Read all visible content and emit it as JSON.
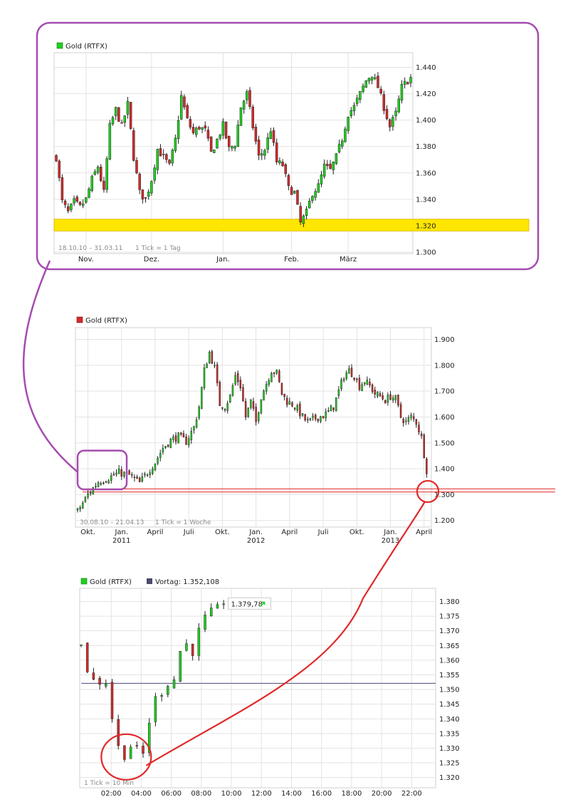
{
  "colors": {
    "up": "#1fd11f",
    "down": "#d42a2a",
    "grid": "#e3e3e3",
    "magnify_top": "#a54cb0",
    "magnify_bottom": "#e02828",
    "support_band": "#ffe600",
    "support_line": "#e02828",
    "vortag_line": "#4a4a7a",
    "legend_vortag": "#4a4a6a"
  },
  "chart_data": [
    {
      "id": "top",
      "type": "candlestick",
      "legend": "Gold (RTFX)",
      "legend_color": "#1fd11f",
      "range_label": "18.10.10 – 31.03.11",
      "tick_label": "1 Tick = 1 Tag",
      "ylim": [
        1300,
        1450
      ],
      "yticks": [
        1300,
        1320,
        1340,
        1360,
        1380,
        1400,
        1420,
        1440
      ],
      "ytick_labels": [
        "1.300",
        "1.320",
        "1.340",
        "1.360",
        "1.380",
        "1.400",
        "1.420",
        "1.440"
      ],
      "x_start": 0,
      "x_end": 119,
      "xticks": [
        {
          "x": 10,
          "label": "Nov."
        },
        {
          "x": 32,
          "label": "Dez."
        },
        {
          "x": 56,
          "label": "Jan."
        },
        {
          "x": 79,
          "label": "Feb."
        },
        {
          "x": 98,
          "label": "März"
        }
      ],
      "support_band": [
        1316,
        1325
      ],
      "anchors": [
        [
          0,
          1372
        ],
        [
          2,
          1338
        ],
        [
          4,
          1330
        ],
        [
          6,
          1338
        ],
        [
          8,
          1334
        ],
        [
          10,
          1340
        ],
        [
          12,
          1355
        ],
        [
          14,
          1365
        ],
        [
          16,
          1345
        ],
        [
          18,
          1395
        ],
        [
          20,
          1408
        ],
        [
          22,
          1395
        ],
        [
          24,
          1412
        ],
        [
          26,
          1372
        ],
        [
          28,
          1345
        ],
        [
          30,
          1340
        ],
        [
          32,
          1355
        ],
        [
          34,
          1378
        ],
        [
          36,
          1372
        ],
        [
          38,
          1365
        ],
        [
          40,
          1385
        ],
        [
          42,
          1418
        ],
        [
          44,
          1400
        ],
        [
          46,
          1390
        ],
        [
          48,
          1395
        ],
        [
          50,
          1392
        ],
        [
          52,
          1375
        ],
        [
          54,
          1385
        ],
        [
          56,
          1396
        ],
        [
          58,
          1378
        ],
        [
          60,
          1382
        ],
        [
          62,
          1410
        ],
        [
          64,
          1420
        ],
        [
          66,
          1395
        ],
        [
          68,
          1372
        ],
        [
          70,
          1378
        ],
        [
          72,
          1393
        ],
        [
          74,
          1368
        ],
        [
          76,
          1366
        ],
        [
          78,
          1348
        ],
        [
          80,
          1345
        ],
        [
          82,
          1322
        ],
        [
          84,
          1330
        ],
        [
          86,
          1345
        ],
        [
          88,
          1350
        ],
        [
          90,
          1365
        ],
        [
          92,
          1362
        ],
        [
          94,
          1372
        ],
        [
          96,
          1386
        ],
        [
          98,
          1405
        ],
        [
          100,
          1410
        ],
        [
          102,
          1420
        ],
        [
          104,
          1430
        ],
        [
          106,
          1435
        ],
        [
          108,
          1425
        ],
        [
          110,
          1410
        ],
        [
          112,
          1395
        ],
        [
          114,
          1405
        ],
        [
          116,
          1425
        ],
        [
          118,
          1430
        ],
        [
          119,
          1432
        ]
      ]
    },
    {
      "id": "middle",
      "type": "candlestick",
      "legend": "Gold (RTFX)",
      "legend_color": "#d42a2a",
      "range_label": "30.08.10 – 21.04.13",
      "tick_label": "1 Tick = 1 Woche",
      "ylim": [
        1180,
        1940
      ],
      "yticks": [
        1200,
        1300,
        1400,
        1500,
        1600,
        1700,
        1800,
        1900
      ],
      "ytick_labels": [
        "1.200",
        "1.300",
        "1.400",
        "1.500",
        "1.600",
        "1.700",
        "1.800",
        "1.900"
      ],
      "x_start": 0,
      "x_end": 136,
      "xticks": [
        {
          "x": 4,
          "label": "Okt."
        },
        {
          "x": 17,
          "label": "Jan.",
          "sub": "2011"
        },
        {
          "x": 30,
          "label": "April"
        },
        {
          "x": 43,
          "label": "Juli"
        },
        {
          "x": 56,
          "label": "Okt."
        },
        {
          "x": 69,
          "label": "Jan.",
          "sub": "2012"
        },
        {
          "x": 82,
          "label": "April"
        },
        {
          "x": 95,
          "label": "Juli"
        },
        {
          "x": 108,
          "label": "Okt."
        },
        {
          "x": 121,
          "label": "Jan.",
          "sub": "2013"
        },
        {
          "x": 134,
          "label": "April"
        }
      ],
      "support_lines": [
        1322,
        1310
      ],
      "anchors": [
        [
          0,
          1235
        ],
        [
          4,
          1300
        ],
        [
          8,
          1350
        ],
        [
          12,
          1365
        ],
        [
          16,
          1385
        ],
        [
          20,
          1375
        ],
        [
          24,
          1345
        ],
        [
          27,
          1385
        ],
        [
          30,
          1425
        ],
        [
          33,
          1480
        ],
        [
          36,
          1510
        ],
        [
          39,
          1525
        ],
        [
          42,
          1505
        ],
        [
          45,
          1560
        ],
        [
          47,
          1640
        ],
        [
          49,
          1780
        ],
        [
          51,
          1850
        ],
        [
          53,
          1790
        ],
        [
          55,
          1650
        ],
        [
          57,
          1640
        ],
        [
          59,
          1680
        ],
        [
          61,
          1760
        ],
        [
          63,
          1720
        ],
        [
          65,
          1600
        ],
        [
          67,
          1660
        ],
        [
          69,
          1580
        ],
        [
          71,
          1680
        ],
        [
          73,
          1730
        ],
        [
          75,
          1780
        ],
        [
          77,
          1770
        ],
        [
          79,
          1690
        ],
        [
          81,
          1660
        ],
        [
          83,
          1650
        ],
        [
          85,
          1630
        ],
        [
          87,
          1600
        ],
        [
          89,
          1580
        ],
        [
          91,
          1590
        ],
        [
          93,
          1600
        ],
        [
          95,
          1605
        ],
        [
          97,
          1620
        ],
        [
          99,
          1640
        ],
        [
          101,
          1700
        ],
        [
          103,
          1760
        ],
        [
          105,
          1780
        ],
        [
          107,
          1760
        ],
        [
          109,
          1720
        ],
        [
          111,
          1740
        ],
        [
          113,
          1720
        ],
        [
          115,
          1690
        ],
        [
          117,
          1680
        ],
        [
          119,
          1665
        ],
        [
          121,
          1680
        ],
        [
          123,
          1670
        ],
        [
          125,
          1600
        ],
        [
          127,
          1580
        ],
        [
          129,
          1600
        ],
        [
          131,
          1580
        ],
        [
          133,
          1520
        ],
        [
          135,
          1395
        ]
      ],
      "magnifier_box": {
        "x0": 0,
        "x1": 19,
        "y_lo": 1320,
        "y_hi": 1470
      }
    },
    {
      "id": "bottom",
      "type": "candlestick",
      "legend": "Gold (RTFX)",
      "legend_color": "#1fd11f",
      "legend2": "Vortag: 1.352,108",
      "legend2_color": "#4a4a6a",
      "tick_label": "1 Tick = 10 Min",
      "ylim": [
        1317,
        1384
      ],
      "yticks": [
        1320,
        1325,
        1330,
        1335,
        1340,
        1345,
        1350,
        1355,
        1360,
        1365,
        1370,
        1375,
        1380
      ],
      "ytick_labels": [
        "1.320",
        "1.325",
        "1.330",
        "1.335",
        "1.340",
        "1.345",
        "1.350",
        "1.355",
        "1.360",
        "1.365",
        "1.370",
        "1.375",
        "1.380"
      ],
      "x_start": 0,
      "x_end": 141,
      "xticks": [
        {
          "x": 12,
          "label": "02:00"
        },
        {
          "x": 24,
          "label": "04:00"
        },
        {
          "x": 36,
          "label": "06:00"
        },
        {
          "x": 48,
          "label": "08:00"
        },
        {
          "x": 60,
          "label": "10:00"
        },
        {
          "x": 72,
          "label": "12:00"
        },
        {
          "x": 84,
          "label": "14:00"
        },
        {
          "x": 96,
          "label": "16:00"
        },
        {
          "x": 108,
          "label": "18:00"
        },
        {
          "x": 120,
          "label": "20:00"
        },
        {
          "x": 132,
          "label": "22:00"
        }
      ],
      "vortag": 1352.108,
      "last_price_label": "1.379,78",
      "last_price": 1379.78,
      "bars_count": 58,
      "anchors": [
        [
          0,
          1365
        ],
        [
          3,
          1355
        ],
        [
          6,
          1352
        ],
        [
          9,
          1353
        ],
        [
          11,
          1352
        ],
        [
          13,
          1335
        ],
        [
          15,
          1330
        ],
        [
          17,
          1327
        ],
        [
          19,
          1330
        ],
        [
          21,
          1332
        ],
        [
          23,
          1328
        ],
        [
          25,
          1328
        ],
        [
          27,
          1338
        ],
        [
          29,
          1348
        ],
        [
          31,
          1345
        ],
        [
          33,
          1352
        ],
        [
          35,
          1352
        ],
        [
          37,
          1353
        ],
        [
          39,
          1362
        ],
        [
          41,
          1366
        ],
        [
          43,
          1365
        ],
        [
          45,
          1362
        ],
        [
          47,
          1370
        ],
        [
          49,
          1374
        ],
        [
          51,
          1376
        ],
        [
          53,
          1377
        ],
        [
          55,
          1378
        ],
        [
          57,
          1380
        ]
      ],
      "magnifier_circle": {
        "x": 18,
        "y": 1327
      }
    }
  ]
}
